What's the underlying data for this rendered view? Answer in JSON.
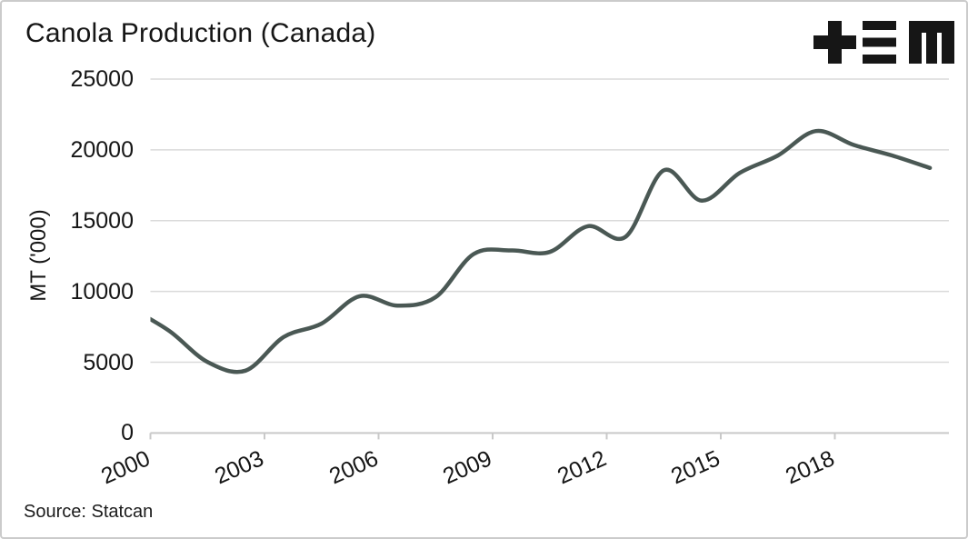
{
  "header": {
    "title": "Canola Production (Canada)",
    "logo_name": "plus-triplebar-m-logo"
  },
  "chart_data": {
    "type": "line",
    "title": "Canola Production (Canada)",
    "xlabel": "",
    "ylabel": "MT ('000)",
    "years": [
      1999,
      2000,
      2001,
      2002,
      2003,
      2004,
      2005,
      2006,
      2007,
      2008,
      2009,
      2010,
      2011,
      2012,
      2013,
      2014,
      2015,
      2016,
      2017,
      2018,
      2019,
      2020
    ],
    "series": [
      {
        "name": "Canola production",
        "values": [
          8798,
          7205,
          5017,
          4407,
          6771,
          7728,
          9660,
          9000,
          9601,
          12643,
          12898,
          12789,
          14608,
          13869,
          18551,
          16410,
          18377,
          19600,
          21328,
          20343,
          19607,
          18720
        ]
      }
    ],
    "x_ticks": [
      "2000",
      "2003",
      "2006",
      "2009",
      "2012",
      "2015",
      "2018"
    ],
    "y_ticks": [
      0,
      5000,
      10000,
      15000,
      20000,
      25000
    ],
    "xlim": [
      2000,
      2021
    ],
    "ylim": [
      0,
      25000
    ],
    "grid": "horizontal",
    "legend": "none",
    "curve": "smooth-spline",
    "point_alignment": "mid-year"
  },
  "source": {
    "label": "Source: Statcan"
  },
  "colors": {
    "line": "#4a5854",
    "grid": "#dadada",
    "axis": "#c9c9c9",
    "text": "#1a1a1a",
    "logo": "#161616",
    "background": "#ffffff",
    "frame_border": "#cbcbcb"
  }
}
